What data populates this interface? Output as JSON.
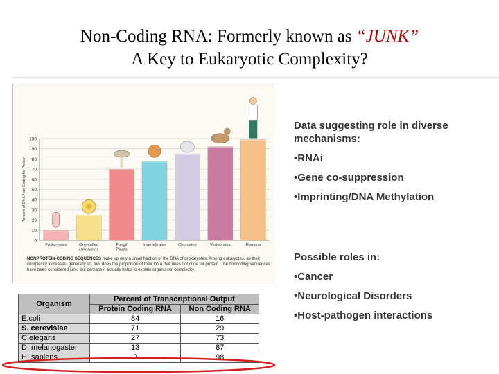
{
  "slide": {
    "title_line1_prefix": "Non-Coding RNA: Formerly known as ",
    "title_junk": "“JUNK”",
    "title_line2": "A Key to Eukaryotic Complexity?"
  },
  "chart_data": {
    "type": "bar",
    "ylabel": "Percent of DNA Non Coding for Protein",
    "ylim": [
      0,
      100
    ],
    "yticks": [
      0,
      10,
      20,
      30,
      40,
      50,
      60,
      70,
      80,
      90,
      100
    ],
    "categories": [
      "Prokaryotes",
      "One-celled eukaryotes",
      "Fungi/ Plants",
      "Invertebrates",
      "Chordates",
      "Vertebrates",
      "Humans"
    ],
    "category_lines": [
      [
        "Prokaryotes"
      ],
      [
        "One-celled",
        "eukaryotes"
      ],
      [
        "Fungi/",
        "Plants"
      ],
      [
        "Invertebrates"
      ],
      [
        "Chordates"
      ],
      [
        "Vertebrates"
      ],
      [
        "Humans"
      ]
    ],
    "values": [
      10,
      25,
      70,
      78,
      85,
      92,
      99
    ],
    "colors": [
      "#f4b4b4",
      "#f7e08a",
      "#f08a8a",
      "#7fd4df",
      "#d2c9e3",
      "#c97aa0",
      "#f8c089"
    ],
    "grid": true
  },
  "caption": {
    "lead": "NONPROTEIN-CODING SEQUENCES",
    "text": " make up only a small fraction of the DNA of prokaryotes. Among eukaryotes, as their complexity increases, generally so, too, does the proportion of their DNA that does not code for protein. The noncoding sequences have been considered junk, but perhaps it actually helps to explain organisms' complexity."
  },
  "bullets": {
    "heading": "Data suggesting role in diverse mechanisms:",
    "items": [
      "•RNAi",
      "•Gene co-suppression",
      "•Imprinting/DNA Methylation"
    ],
    "heading2": "Possible roles in:",
    "items2": [
      "•Cancer",
      "•Neurological Disorders",
      "•Host-pathogen interactions"
    ]
  },
  "table": {
    "organism_header": "Organism",
    "group_header": "Percent of Transcriptional Output",
    "col1": "Protein Coding RNA",
    "col2": "Non Coding RNA",
    "rows": [
      {
        "organism": "E.coli",
        "protein": "84",
        "noncoding": "16"
      },
      {
        "organism": "S. cerevisiae",
        "protein": "71",
        "noncoding": "29"
      },
      {
        "organism": "C.elegans",
        "protein": "27",
        "noncoding": "73"
      },
      {
        "organism": "D. melanogaster",
        "protein": "13",
        "noncoding": "87"
      },
      {
        "organism": "H. sapiens",
        "protein": "2",
        "noncoding": "98"
      }
    ]
  },
  "colors": {
    "highlight_ellipse": "#d62020",
    "junk_text": "#c00000"
  }
}
